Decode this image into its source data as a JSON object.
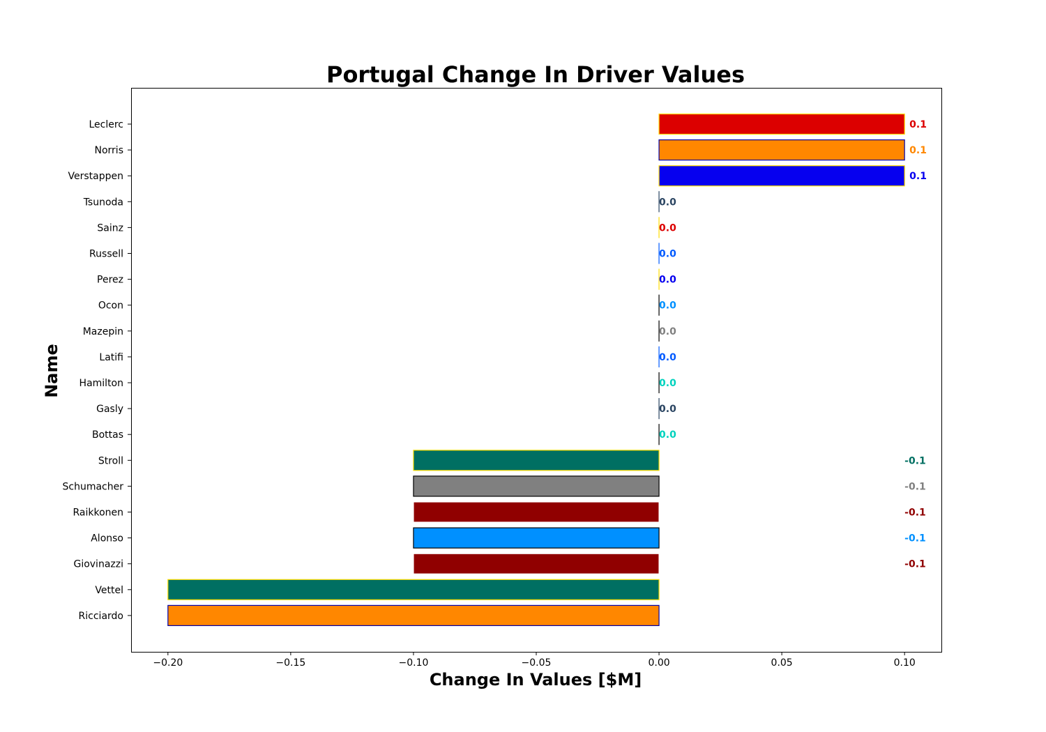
{
  "chart_data": {
    "type": "bar",
    "orientation": "horizontal",
    "title": "Portugal Change In Driver Values",
    "xlabel": "Change In Values [$M]",
    "ylabel": "Name",
    "xlim": [
      -0.215,
      0.115
    ],
    "xticks": [
      -0.2,
      -0.15,
      -0.1,
      -0.05,
      0.0,
      0.05,
      0.1
    ],
    "xtick_labels": [
      "−0.20",
      "−0.15",
      "−0.10",
      "−0.05",
      "0.00",
      "0.05",
      "0.10"
    ],
    "grid": false,
    "categories": [
      "Leclerc",
      "Norris",
      "Verstappen",
      "Tsunoda",
      "Sainz",
      "Russell",
      "Perez",
      "Ocon",
      "Mazepin",
      "Latifi",
      "Hamilton",
      "Gasly",
      "Bottas",
      "Stroll",
      "Schumacher",
      "Raikkonen",
      "Alonso",
      "Giovinazzi",
      "Vettel",
      "Ricciardo"
    ],
    "values": [
      0.1,
      0.1,
      0.1,
      0.0,
      0.0,
      0.0,
      0.0,
      0.0,
      0.0,
      0.0,
      0.0,
      0.0,
      0.0,
      -0.1,
      -0.1,
      -0.1,
      -0.1,
      -0.1,
      -0.2,
      -0.2
    ],
    "value_labels": [
      "0.1",
      "0.1",
      "0.1",
      "0.0",
      "0.0",
      "0.0",
      "0.0",
      "0.0",
      "0.0",
      "0.0",
      "0.0",
      "0.0",
      "0.0",
      "-0.1",
      "-0.1",
      "-0.1",
      "-0.1",
      "-0.1",
      "",
      ""
    ],
    "bar_colors": [
      "#dc0000",
      "#ff8700",
      "#0600ef",
      "#2b4562",
      "#dc0000",
      "#005aff",
      "#0600ef",
      "#0090ff",
      "#808080",
      "#005aff",
      "#00d2be",
      "#2b4562",
      "#00d2be",
      "#006f62",
      "#808080",
      "#900000",
      "#0090ff",
      "#900000",
      "#006f62",
      "#ff8700"
    ],
    "edge_colors": [
      "#ffdd00",
      "#0000aa",
      "#ffdd00",
      "#2b4562",
      "#ffdd00",
      "#005aff",
      "#ffdd00",
      "#000000",
      "#000000",
      "#005aff",
      "#000000",
      "#2b4562",
      "#000000",
      "#ffdd00",
      "#000000",
      "#ffffff",
      "#000000",
      "#ffffff",
      "#ffdd00",
      "#0000aa"
    ],
    "label_colors": [
      "#dc0000",
      "#ff8700",
      "#0600ef",
      "#2b4562",
      "#dc0000",
      "#005aff",
      "#0600ef",
      "#0090ff",
      "#808080",
      "#005aff",
      "#00d2be",
      "#2b4562",
      "#00d2be",
      "#006f62",
      "#808080",
      "#900000",
      "#0090ff",
      "#900000",
      "#006f62",
      "#ff8700"
    ]
  }
}
